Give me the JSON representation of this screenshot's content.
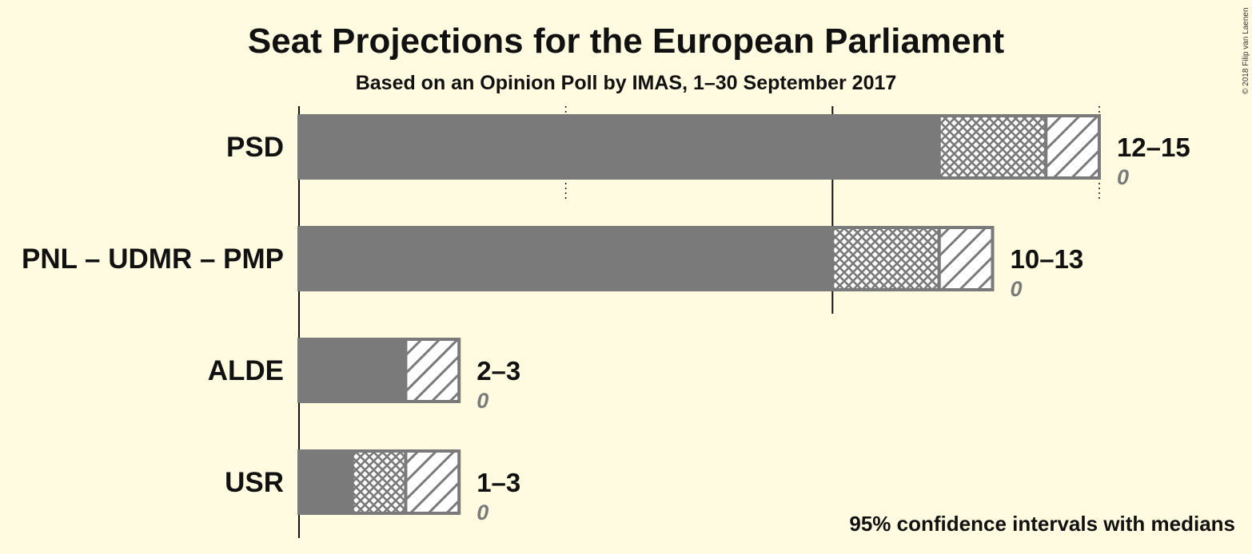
{
  "title": "Seat Projections for the European Parliament",
  "subtitle": "Based on an Opinion Poll by IMAS, 1–30 September 2017",
  "note": "95% confidence intervals with medians",
  "copyright": "© 2018 Filip van Laenen",
  "colors": {
    "background": "#fffbe1",
    "bar": "#7a7a7a",
    "hatch_background": "#ffffff",
    "text": "#111111",
    "last_result": "#7a7a7a"
  },
  "chart_data": {
    "type": "bar",
    "orientation": "horizontal",
    "title": "Seat Projections for the European Parliament",
    "subtitle": "Based on an Opinion Poll by IMAS, 1–30 September 2017",
    "xlim": [
      0,
      15
    ],
    "gridlines": [
      {
        "value": 5,
        "style": "dotted"
      },
      {
        "value": 10,
        "style": "solid"
      },
      {
        "value": 15,
        "style": "dotted"
      }
    ],
    "series": [
      {
        "party": "PSD",
        "low": 12,
        "median": 14,
        "high": 15,
        "range_label": "12–15",
        "last_result": "0"
      },
      {
        "party": "PNL – UDMR – PMP",
        "low": 10,
        "median": 12,
        "high": 13,
        "range_label": "10–13",
        "last_result": "0"
      },
      {
        "party": "ALDE",
        "low": 2,
        "median": 2,
        "high": 3,
        "range_label": "2–3",
        "last_result": "0"
      },
      {
        "party": "USR",
        "low": 1,
        "median": 2,
        "high": 3,
        "range_label": "1–3",
        "last_result": "0"
      }
    ]
  }
}
